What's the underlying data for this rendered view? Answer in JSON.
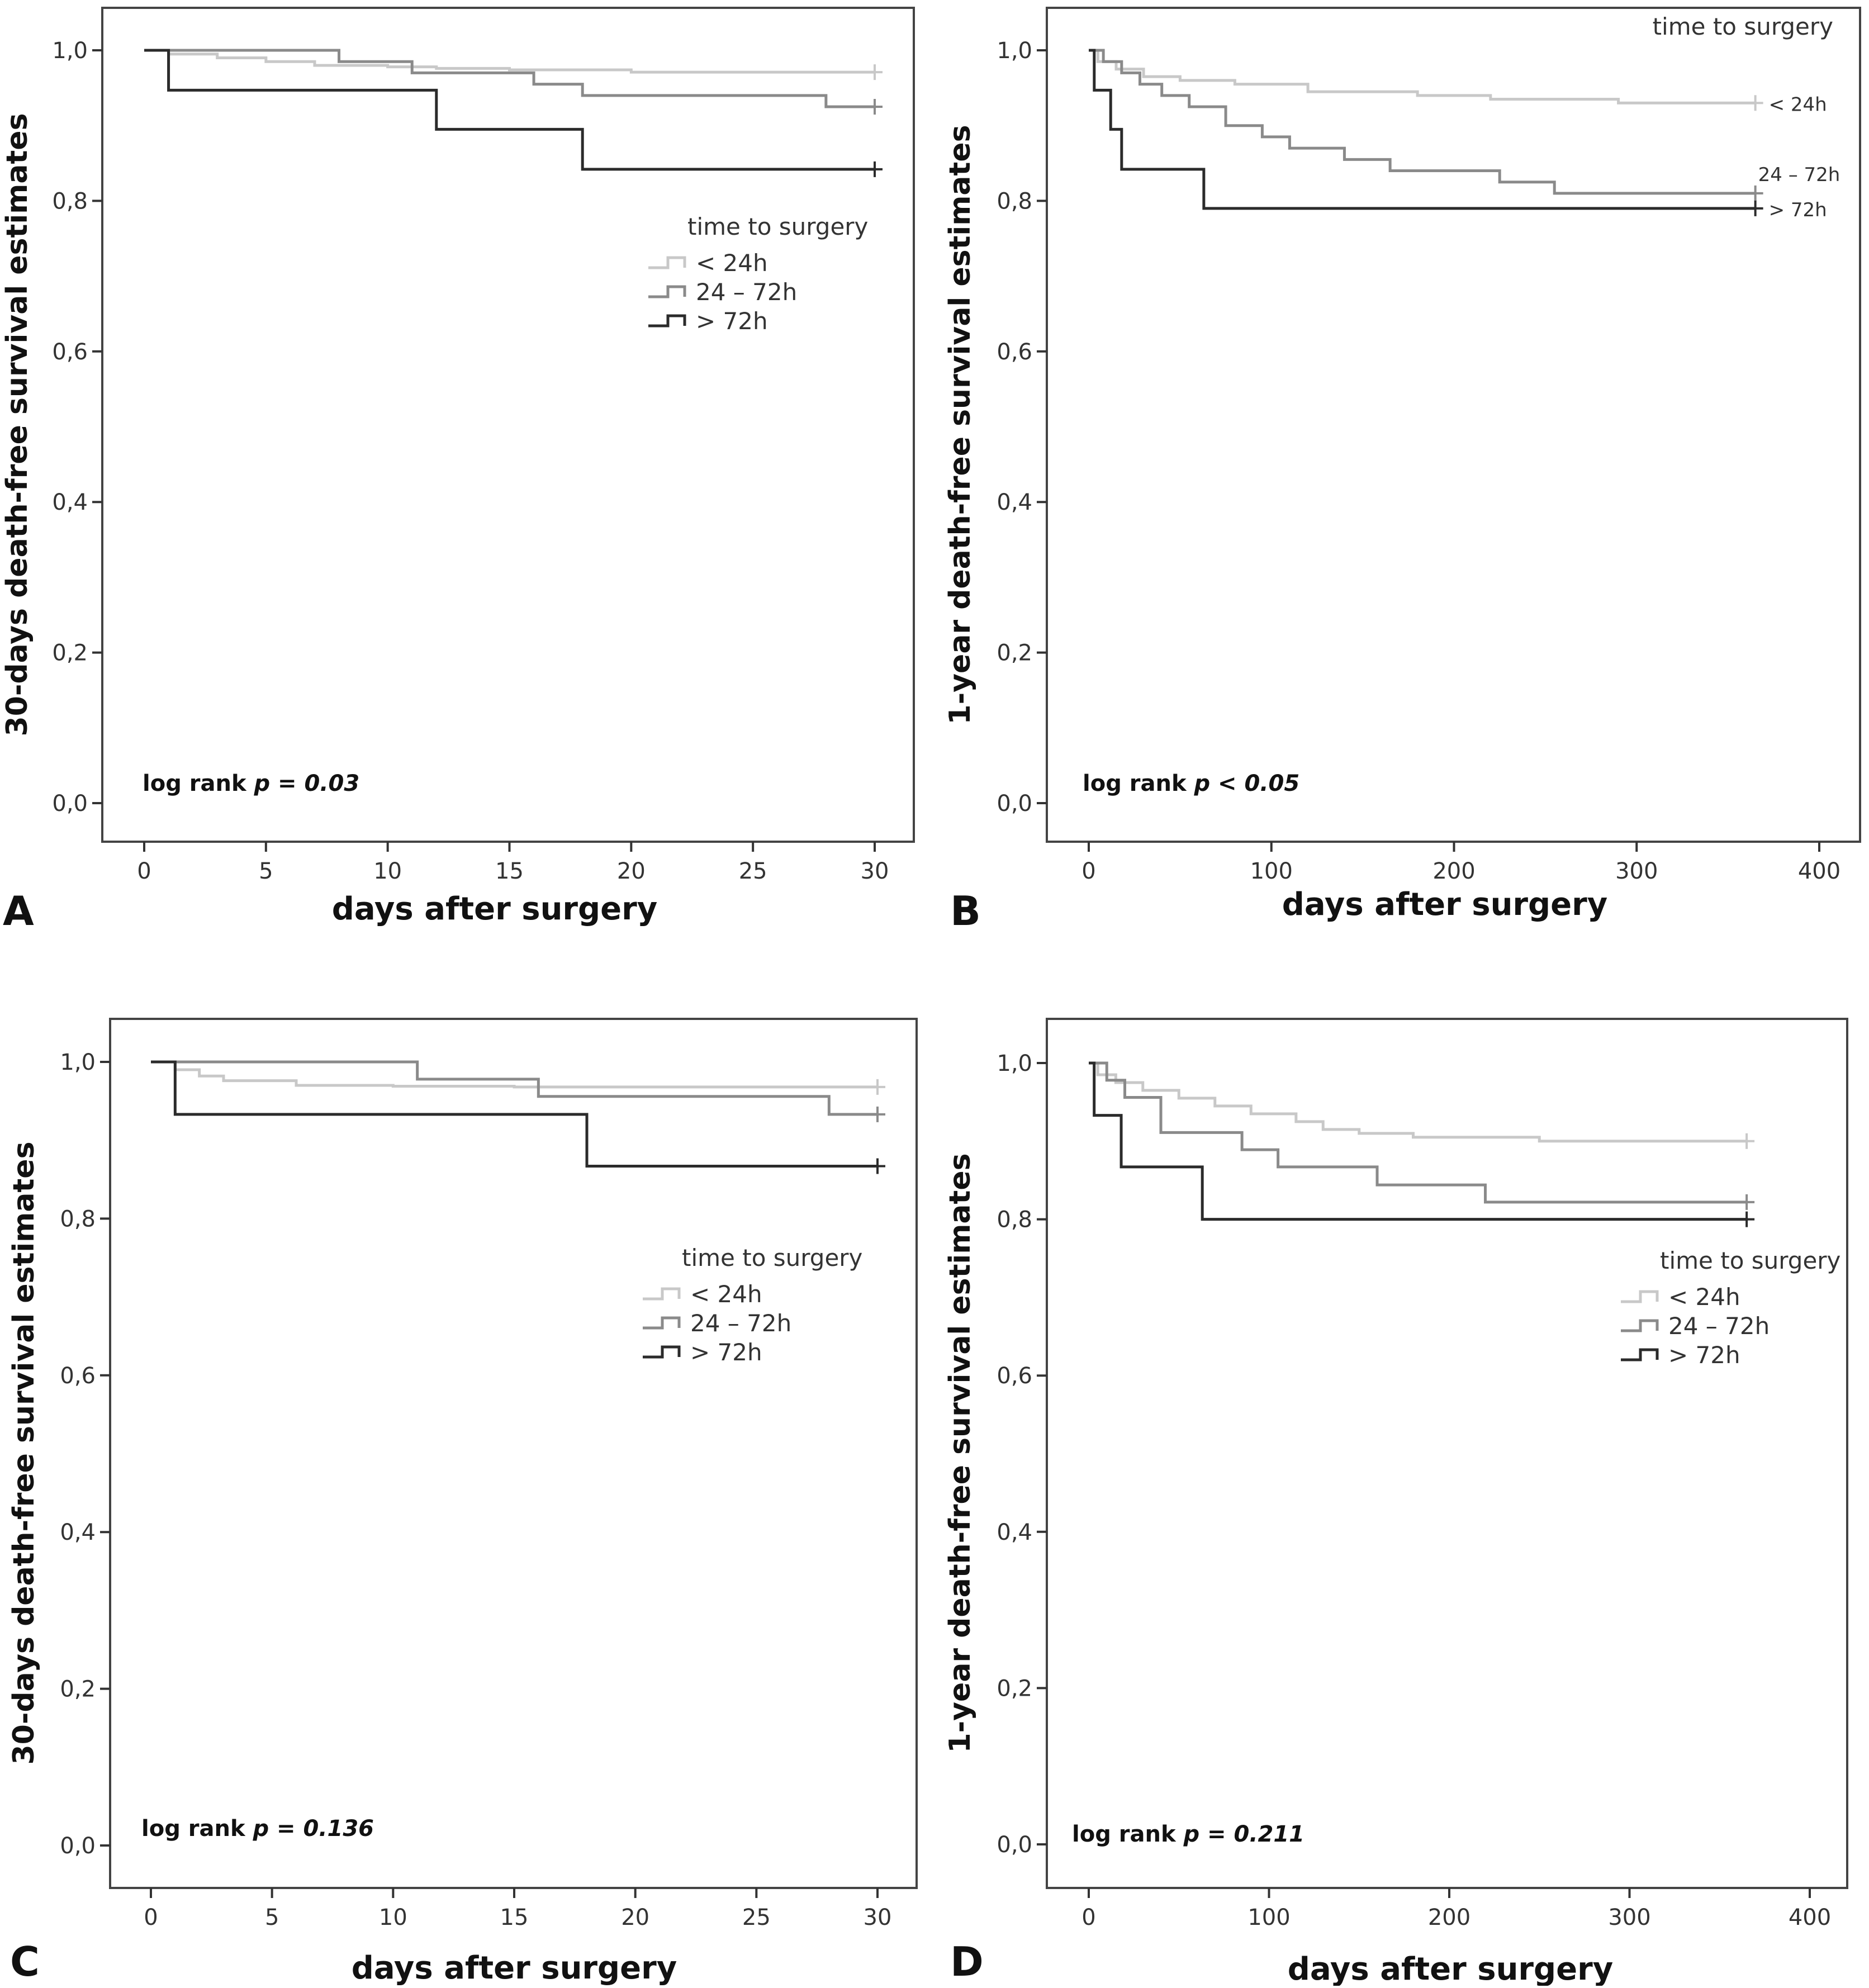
{
  "figure": {
    "colors": {
      "lt24": "#c8c8c8",
      "h24_72": "#8a8a8a",
      "gt72": "#2b2b2b"
    }
  },
  "chart_data": [
    {
      "id": "A",
      "type": "line",
      "subtype": "kaplan-meier step",
      "panel_label": "A",
      "xlabel": "days after surgery",
      "ylabel": "30-days death-free survival estimates",
      "xlim": [
        0,
        30
      ],
      "ylim": [
        0,
        1
      ],
      "xticks": [
        0,
        5,
        10,
        15,
        20,
        25,
        30
      ],
      "xtick_labels": [
        "0",
        "5",
        "10",
        "15",
        "20",
        "25",
        "30"
      ],
      "yticks": [
        0,
        0.2,
        0.4,
        0.6,
        0.8,
        1.0
      ],
      "ytick_labels": [
        "0,0",
        "0,2",
        "0,4",
        "0,6",
        "0,8",
        "1,0"
      ],
      "legend": {
        "title": "time to surgery",
        "placement": "center-right",
        "style": "box",
        "entries": [
          "< 24h",
          "24 – 72h",
          "> 72h"
        ]
      },
      "annotation": {
        "prefix": "log rank ",
        "value": "p = 0.03"
      },
      "series": [
        {
          "name": "< 24h",
          "color_key": "lt24",
          "x": [
            0,
            1,
            3,
            5,
            7,
            10,
            12,
            15,
            20,
            30
          ],
          "y": [
            1.0,
            0.995,
            0.99,
            0.985,
            0.98,
            0.978,
            0.976,
            0.974,
            0.971,
            0.971
          ]
        },
        {
          "name": "24 – 72h",
          "color_key": "h24_72",
          "x": [
            0,
            8,
            11,
            16,
            18,
            28,
            30
          ],
          "y": [
            1.0,
            0.985,
            0.97,
            0.955,
            0.94,
            0.925,
            0.925
          ]
        },
        {
          "name": "> 72h",
          "color_key": "gt72",
          "x": [
            0,
            1,
            12,
            18,
            30
          ],
          "y": [
            1.0,
            0.947,
            0.895,
            0.842,
            0.842
          ]
        }
      ]
    },
    {
      "id": "B",
      "type": "line",
      "subtype": "kaplan-meier step",
      "panel_label": "B",
      "xlabel": "days after surgery",
      "ylabel": "1-year death-free survival estimates",
      "xlim": [
        0,
        400
      ],
      "ylim": [
        0,
        1
      ],
      "xticks": [
        0,
        100,
        200,
        300,
        400
      ],
      "xtick_labels": [
        "0",
        "100",
        "200",
        "300",
        "400"
      ],
      "yticks": [
        0,
        0.2,
        0.4,
        0.6,
        0.8,
        1.0
      ],
      "ytick_labels": [
        "0,0",
        "0,2",
        "0,4",
        "0,6",
        "0,8",
        "1,0"
      ],
      "legend": {
        "title": "time to surgery",
        "placement": "top-right",
        "style": "inline",
        "entries": [
          "< 24h",
          "24 – 72h",
          "> 72h"
        ]
      },
      "annotation": {
        "prefix": "log rank ",
        "value": "p < 0.05"
      },
      "series": [
        {
          "name": "< 24h",
          "color_key": "lt24",
          "x": [
            0,
            5,
            15,
            30,
            50,
            80,
            120,
            180,
            220,
            290,
            365
          ],
          "y": [
            1.0,
            0.985,
            0.975,
            0.965,
            0.96,
            0.955,
            0.945,
            0.94,
            0.935,
            0.93,
            0.93
          ]
        },
        {
          "name": "24 – 72h",
          "color_key": "h24_72",
          "x": [
            0,
            8,
            18,
            28,
            40,
            55,
            75,
            95,
            110,
            140,
            165,
            225,
            255,
            305,
            365
          ],
          "y": [
            1.0,
            0.985,
            0.97,
            0.955,
            0.94,
            0.925,
            0.9,
            0.885,
            0.87,
            0.855,
            0.84,
            0.825,
            0.81,
            0.81,
            0.81
          ]
        },
        {
          "name": "> 72h",
          "color_key": "gt72",
          "x": [
            0,
            3,
            12,
            18,
            63,
            365
          ],
          "y": [
            1.0,
            0.947,
            0.895,
            0.842,
            0.79,
            0.79
          ]
        }
      ]
    },
    {
      "id": "C",
      "type": "line",
      "subtype": "kaplan-meier step",
      "panel_label": "C",
      "xlabel": "days after surgery",
      "ylabel": "30-days death-free survival estimates",
      "xlim": [
        0,
        30
      ],
      "ylim": [
        0,
        1
      ],
      "xticks": [
        0,
        5,
        10,
        15,
        20,
        25,
        30
      ],
      "xtick_labels": [
        "0",
        "5",
        "10",
        "15",
        "20",
        "25",
        "30"
      ],
      "yticks": [
        0,
        0.2,
        0.4,
        0.6,
        0.8,
        1.0
      ],
      "ytick_labels": [
        "0,0",
        "0,2",
        "0,4",
        "0,6",
        "0,8",
        "1,0"
      ],
      "legend": {
        "title": "time to surgery",
        "placement": "center-right",
        "style": "box",
        "entries": [
          "< 24h",
          "24 – 72h",
          "> 72h"
        ]
      },
      "annotation": {
        "prefix": "log rank ",
        "value": "p = 0.136"
      },
      "series": [
        {
          "name": "< 24h",
          "color_key": "lt24",
          "x": [
            0,
            1,
            2,
            3,
            6,
            10,
            15,
            30
          ],
          "y": [
            1.0,
            0.99,
            0.982,
            0.976,
            0.97,
            0.969,
            0.968,
            0.968
          ]
        },
        {
          "name": "24 – 72h",
          "color_key": "h24_72",
          "x": [
            0,
            11,
            16,
            28,
            30
          ],
          "y": [
            1.0,
            0.978,
            0.956,
            0.933,
            0.933
          ]
        },
        {
          "name": "> 72h",
          "color_key": "gt72",
          "x": [
            0,
            1,
            18,
            30
          ],
          "y": [
            1.0,
            0.933,
            0.867,
            0.867
          ]
        }
      ]
    },
    {
      "id": "D",
      "type": "line",
      "subtype": "kaplan-meier step",
      "panel_label": "D",
      "xlabel": "days after surgery",
      "ylabel": "1-year death-free survival estimates",
      "xlim": [
        0,
        400
      ],
      "ylim": [
        0,
        1
      ],
      "xticks": [
        0,
        100,
        200,
        300,
        400
      ],
      "xtick_labels": [
        "0",
        "100",
        "200",
        "300",
        "400"
      ],
      "yticks": [
        0,
        0.2,
        0.4,
        0.6,
        0.8,
        1.0
      ],
      "ytick_labels": [
        "0,0",
        "0,2",
        "0,4",
        "0,6",
        "0,8",
        "1,0"
      ],
      "legend": {
        "title": "time to surgery",
        "placement": "center-right",
        "style": "box",
        "entries": [
          "< 24h",
          "24 – 72h",
          "> 72h"
        ]
      },
      "annotation": {
        "prefix": "log rank ",
        "value": "p = 0.211"
      },
      "series": [
        {
          "name": "< 24h",
          "color_key": "lt24",
          "x": [
            0,
            5,
            15,
            30,
            50,
            70,
            90,
            115,
            130,
            150,
            180,
            210,
            250,
            290,
            365
          ],
          "y": [
            1.0,
            0.985,
            0.975,
            0.965,
            0.955,
            0.945,
            0.935,
            0.925,
            0.915,
            0.91,
            0.905,
            0.905,
            0.9,
            0.9,
            0.9
          ]
        },
        {
          "name": "24 – 72h",
          "color_key": "h24_72",
          "x": [
            0,
            10,
            20,
            40,
            85,
            105,
            160,
            220,
            365
          ],
          "y": [
            1.0,
            0.978,
            0.956,
            0.911,
            0.889,
            0.867,
            0.844,
            0.822,
            0.822
          ]
        },
        {
          "name": "> 72h",
          "color_key": "gt72",
          "x": [
            0,
            3,
            18,
            63,
            365
          ],
          "y": [
            1.0,
            0.933,
            0.867,
            0.8,
            0.8
          ]
        }
      ]
    }
  ]
}
